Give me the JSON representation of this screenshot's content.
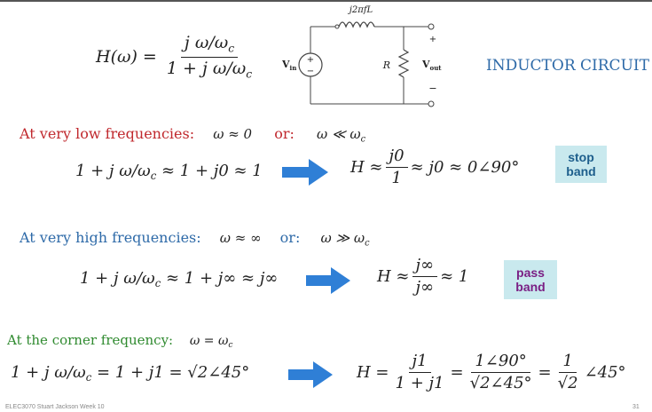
{
  "transfer_function": {
    "lhs": "H(ω) =",
    "numerator": "j ω/ω",
    "denominator": "1 + j ω/ω",
    "subscript": "c"
  },
  "circuit": {
    "inductor_label": "j2πfL",
    "source_label": "V",
    "source_sub": "in",
    "resistor_label": "R",
    "output_label": "V",
    "output_sub": "out",
    "plus": "+",
    "minus": "−"
  },
  "title": "INDUCTOR CIRCUIT",
  "low": {
    "heading": "At very low frequencies:",
    "cond1": "ω ≈ 0",
    "or": "or:",
    "cond2": "ω ≪ ω",
    "cond2_sub": "c",
    "eq_left": "1 + j ω/ω",
    "eq_left_tail": " ≈ 1 + j0 ≈ 1",
    "h_prefix": "H ≈",
    "h_num": "j0",
    "h_den": "1",
    "h_suffix": "≈ j0 ≈ 0∠90°",
    "badge": "stop band"
  },
  "high": {
    "heading": "At very high frequencies:",
    "cond1": "ω ≈ ∞",
    "or": "or:",
    "cond2": "ω ≫ ω",
    "cond2_sub": "c",
    "eq_left": "1 + j ω/ω",
    "eq_left_tail": " ≈ 1 + j∞ ≈ j∞",
    "h_prefix": "H ≈",
    "h_num": "j∞",
    "h_den": "j∞",
    "h_suffix": "≈ 1",
    "badge": "pass band"
  },
  "corner": {
    "heading": "At the corner frequency:",
    "cond": "ω = ω",
    "cond_sub": "c",
    "eq_left": "1 + j ω/ω",
    "eq_left_tail": " = 1 + j1 = √2∠45°",
    "h_prefix": "H =",
    "f1_num": "j1",
    "f1_den": "1 + j1",
    "eq": "=",
    "f2_num": "1∠90°",
    "f2_den": "√2∠45°",
    "eq2": "=",
    "f3_num": "1",
    "f3_den": "√2",
    "tail": "∠45°"
  },
  "footer": {
    "left": "ELEC3070   Stuart Jackson   Week 10",
    "right": "31"
  },
  "colors": {
    "low_heading": "#c0282d",
    "high_heading": "#2e6aa8",
    "corner_heading": "#2f8a2f",
    "arrow": "#2f7fd6",
    "stop_badge_bg": "#c9e9ee",
    "stop_badge_text": "#1d5e8c",
    "pass_badge_bg": "#c9e9ee",
    "pass_badge_text": "#7a1f84"
  }
}
